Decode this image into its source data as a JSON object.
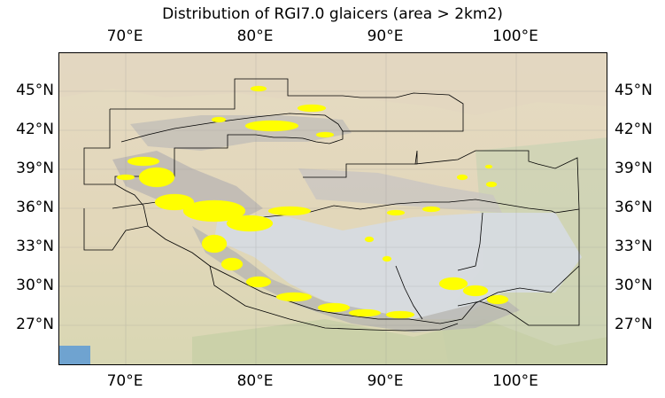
{
  "title": "Distribution of RGI7.0 glaicers (area > 2km2)",
  "map": {
    "lon_range": [
      65,
      107
    ],
    "lat_range": [
      24,
      48
    ],
    "lon_ticks": [
      {
        "value": 70,
        "label": "70°E"
      },
      {
        "value": 80,
        "label": "80°E"
      },
      {
        "value": 90,
        "label": "90°E"
      },
      {
        "value": 100,
        "label": "100°E"
      }
    ],
    "lat_ticks": [
      {
        "value": 45,
        "label": "45°N"
      },
      {
        "value": 42,
        "label": "42°N"
      },
      {
        "value": 39,
        "label": "39°N"
      },
      {
        "value": 36,
        "label": "36°N"
      },
      {
        "value": 33,
        "label": "33°N"
      },
      {
        "value": 30,
        "label": "30°N"
      },
      {
        "value": 27,
        "label": "27°N"
      }
    ],
    "gridlines": true,
    "glacier_color": "#ffff00",
    "boundary_color": "#000000",
    "basemap_colors": {
      "desert": "#e6dcc3",
      "steppe": "#d9d3b4",
      "plateau": "#d4d8dc",
      "mountain": "#b9b5b2",
      "forest": "#b7c4a2",
      "water": "#6fa3d0"
    }
  }
}
